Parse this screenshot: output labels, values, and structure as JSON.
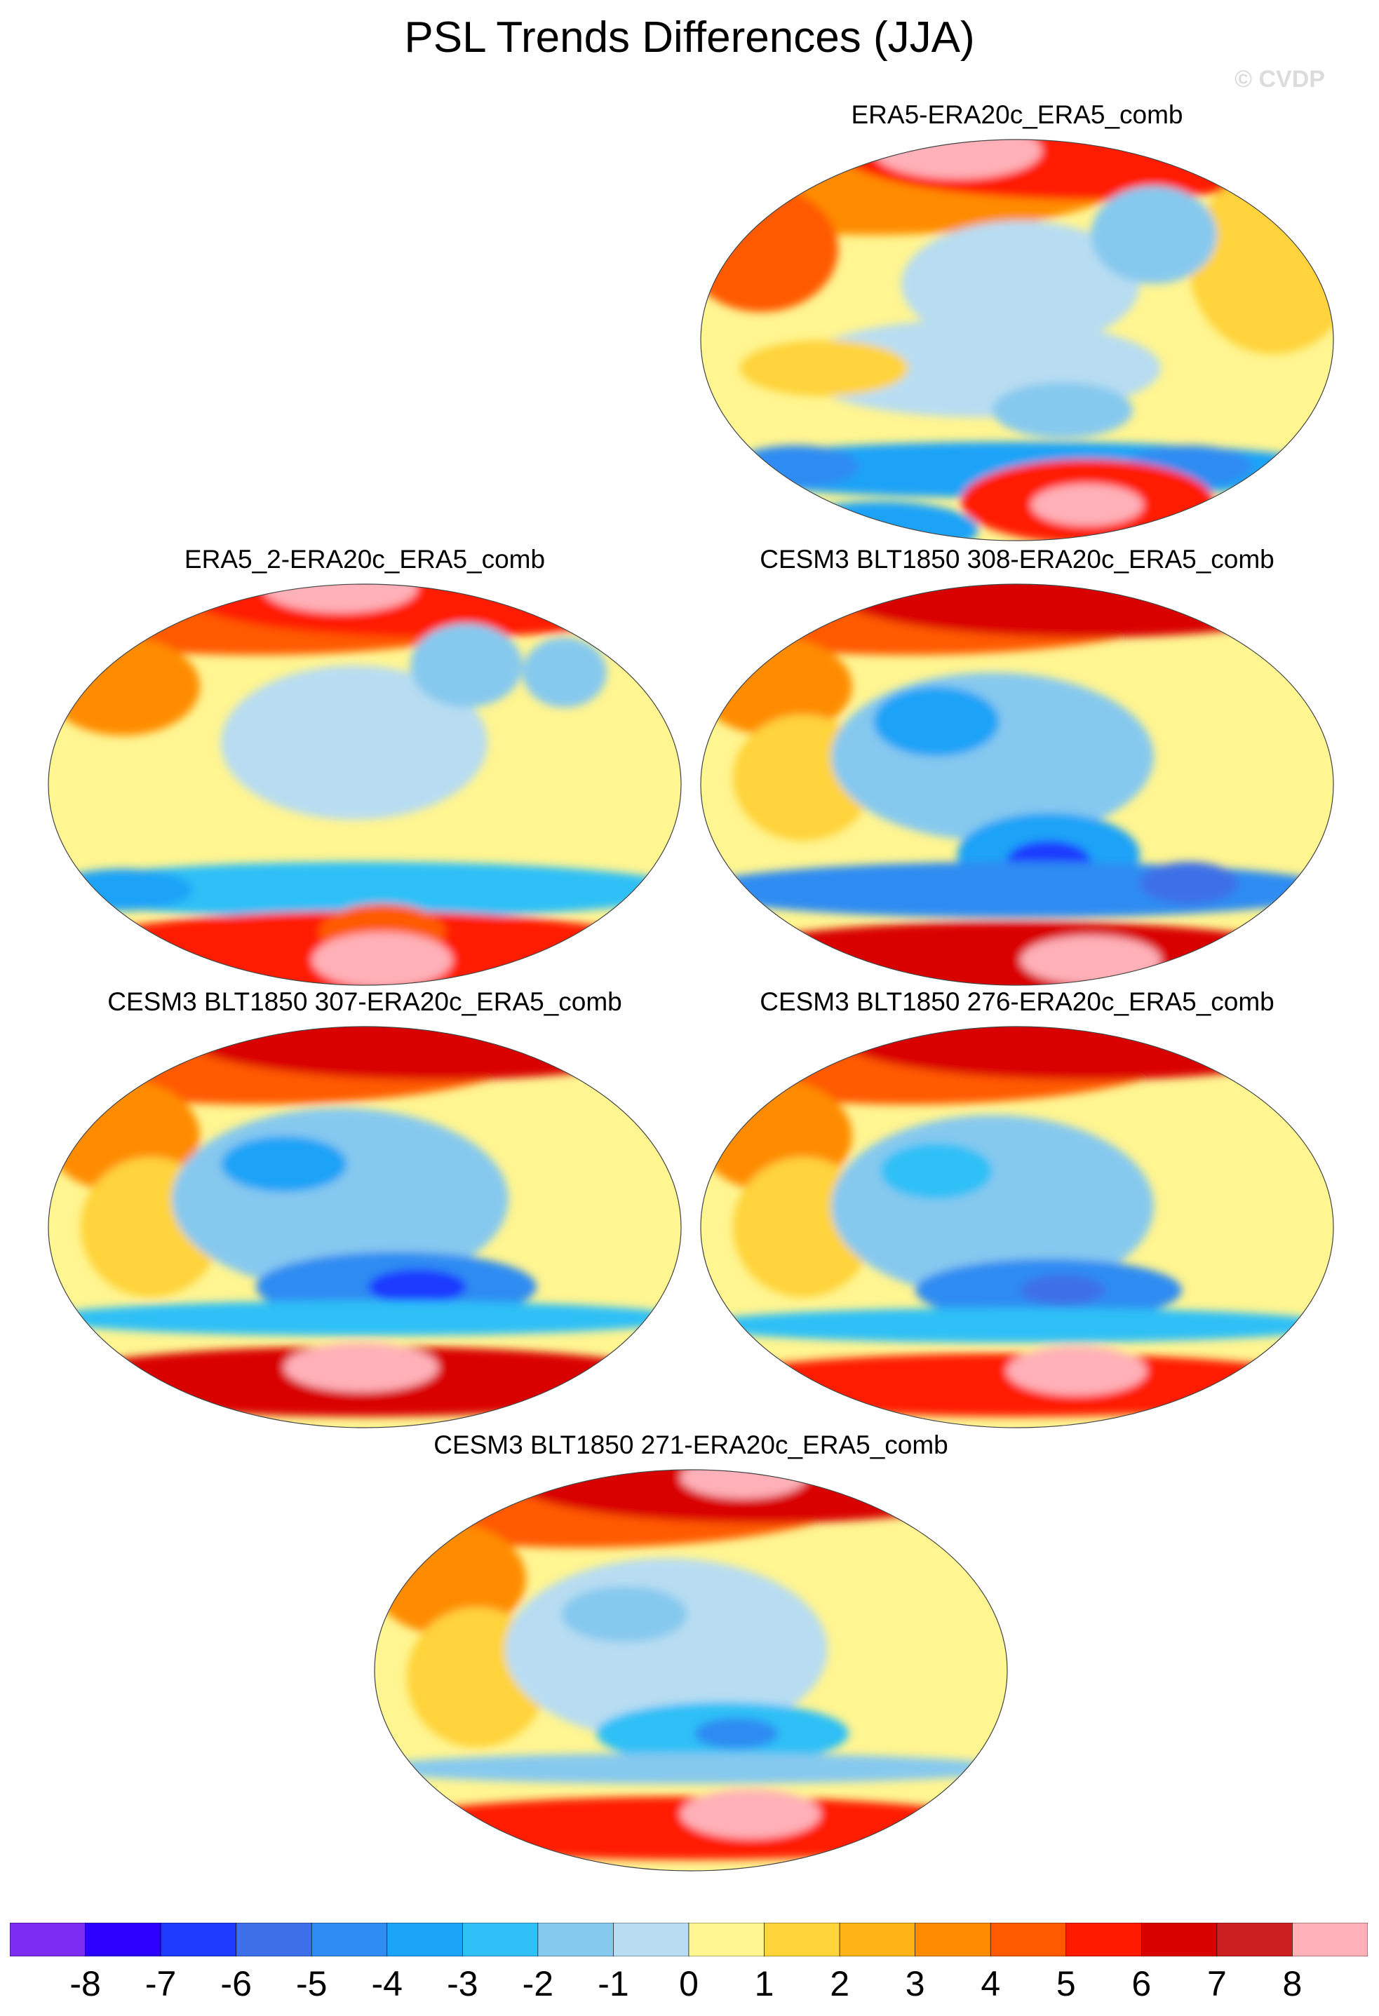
{
  "title": "PSL Trends Differences (JJA)",
  "watermark": "© CVDP",
  "panels": [
    {
      "id": "p1",
      "label": "ERA5-ERA20c_ERA5_comb"
    },
    {
      "id": "p2",
      "label": "ERA5_2-ERA20c_ERA5_comb"
    },
    {
      "id": "p3",
      "label": "CESM3 BLT1850 308-ERA20c_ERA5_comb"
    },
    {
      "id": "p4",
      "label": "CESM3 BLT1850 307-ERA20c_ERA5_comb"
    },
    {
      "id": "p5",
      "label": "CESM3 BLT1850 276-ERA20c_ERA5_comb"
    },
    {
      "id": "p6",
      "label": "CESM3 BLT1850 271-ERA20c_ERA5_comb"
    }
  ],
  "colorbar": {
    "labels": [
      "-8",
      "-7",
      "-6",
      "-5",
      "-4",
      "-3",
      "-2",
      "-1",
      "0",
      "1",
      "2",
      "3",
      "4",
      "5",
      "6",
      "7",
      "8"
    ],
    "colors": [
      "#7c2cf0",
      "#2b00ff",
      "#1f3bff",
      "#3d6fe8",
      "#2f8cf2",
      "#1aa3f7",
      "#2ec0f7",
      "#86c9ef",
      "#b8ddf2",
      "#fff591",
      "#ffd33a",
      "#ffb317",
      "#ff8c00",
      "#ff5a00",
      "#ff1a00",
      "#d90000",
      "#cc2020",
      "#ffb0b8"
    ]
  },
  "chart_data": {
    "type": "heatmap",
    "title": "PSL Trends Differences (JJA)",
    "season": "JJA",
    "projection": "global map",
    "levels": [
      -8,
      -7,
      -6,
      -5,
      -4,
      -3,
      -2,
      -1,
      0,
      1,
      2,
      3,
      4,
      5,
      6,
      7,
      8
    ],
    "panels": [
      "ERA5-ERA20c_ERA5_comb",
      "ERA5_2-ERA20c_ERA5_comb",
      "CESM3 BLT1850 308-ERA20c_ERA5_comb",
      "CESM3 BLT1850 307-ERA20c_ERA5_comb",
      "CESM3 BLT1850 276-ERA20c_ERA5_comb",
      "CESM3 BLT1850 271-ERA20c_ERA5_comb"
    ]
  }
}
